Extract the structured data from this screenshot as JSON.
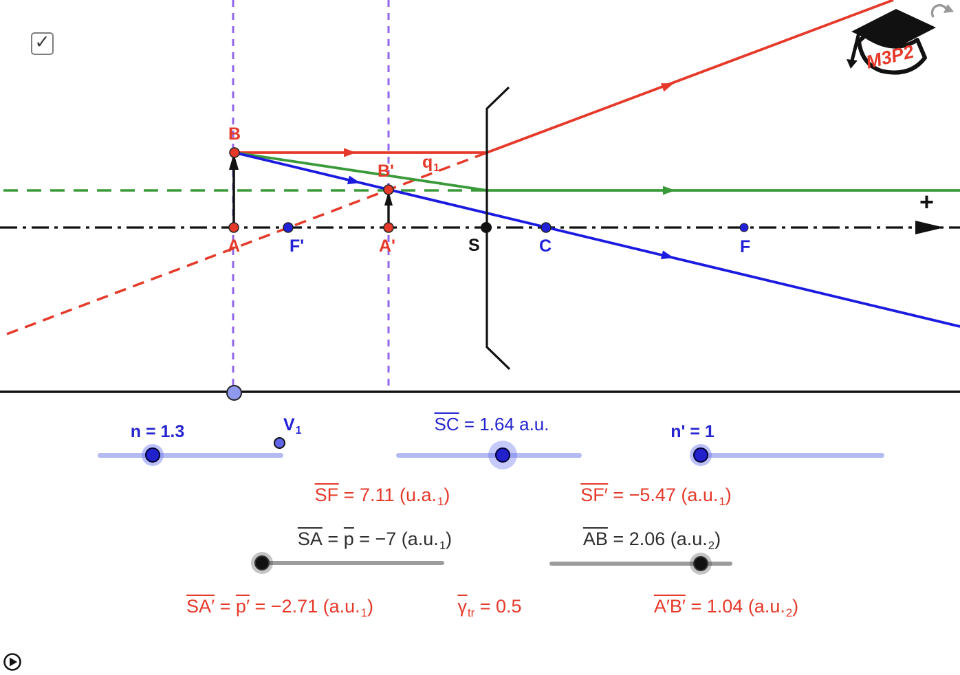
{
  "app": {
    "checkbox_checked": "✓",
    "logo_text": "M3P2",
    "plus_sign": "+",
    "icons": {
      "check": "check-icon",
      "reset": "circular-refresh-arrow",
      "play": "play-circle"
    }
  },
  "points": {
    "B": "B",
    "A": "A",
    "F_prime": "F'",
    "A_prime": "A'",
    "B_prime": "B'",
    "S": "S",
    "C": "C",
    "F": "F",
    "V1_parts": [
      {
        "t": "V"
      },
      {
        "s": "sub",
        "t": "1"
      }
    ],
    "q1_parts": [
      {
        "t": "q"
      },
      {
        "s": "sub",
        "t": "1"
      }
    ]
  },
  "sliders": {
    "n": {
      "label": "n = 1.3",
      "value": 1.3
    },
    "SC": {
      "value": 1.64,
      "unit": "a.u.",
      "label_parts": [
        {
          "s": "bar",
          "t": "SC"
        },
        {
          "t": " = 1.64 a.u."
        }
      ]
    },
    "n_prime": {
      "label": "n' = 1",
      "value": 1
    },
    "SA": {
      "value": -7,
      "label_parts": [
        {
          "s": "bar",
          "t": "SA"
        },
        {
          "t": " = "
        },
        {
          "s": "bar",
          "t": "p"
        },
        {
          "t": " = −7 (a.u."
        },
        {
          "s": "sub",
          "t": "1"
        },
        {
          "t": ")"
        }
      ]
    },
    "AB": {
      "value": 2.06,
      "label_parts": [
        {
          "s": "bar",
          "t": "AB"
        },
        {
          "t": " = 2.06 (a.u."
        },
        {
          "s": "sub",
          "t": "2"
        },
        {
          "t": ")"
        }
      ]
    }
  },
  "readouts": {
    "SF": {
      "value": 7.11,
      "parts": [
        {
          "s": "bar",
          "t": "SF"
        },
        {
          "t": " = 7.11 (u.a."
        },
        {
          "s": "sub",
          "t": "1"
        },
        {
          "t": ")"
        }
      ]
    },
    "SF_prime": {
      "value": -5.47,
      "parts": [
        {
          "s": "bar",
          "t": "SF′"
        },
        {
          "t": " = −5.47 (a.u."
        },
        {
          "s": "sub",
          "t": "1"
        },
        {
          "t": ")"
        }
      ]
    },
    "SA_prime": {
      "value": -2.71,
      "parts": [
        {
          "s": "bar",
          "t": "SA′"
        },
        {
          "t": " = "
        },
        {
          "s": "bar",
          "t": "p′"
        },
        {
          "t": " = −2.71 (a.u."
        },
        {
          "s": "sub",
          "t": "1"
        },
        {
          "t": ")"
        }
      ]
    },
    "gamma_tr": {
      "value": 0.5,
      "parts": [
        {
          "s": "bar",
          "t": "γ"
        },
        {
          "s": "sub",
          "t": "tr"
        },
        {
          "t": " = 0.5"
        }
      ]
    },
    "A_prime_B_prime": {
      "value": 1.04,
      "parts": [
        {
          "s": "bar",
          "t": "A′B′"
        },
        {
          "t": " = 1.04 (a.u."
        },
        {
          "s": "sub",
          "t": "2"
        },
        {
          "t": ")"
        }
      ]
    }
  },
  "colors": {
    "red": "#e5392a",
    "blue_ray": "#1b1be0",
    "label_blue": "#2121d8",
    "green": "#3a9a3a",
    "purple": "#9164eb",
    "slider_track": "#b4baf2",
    "slider_handle": "#2222cc",
    "gray_track": "#9c9c9c"
  }
}
